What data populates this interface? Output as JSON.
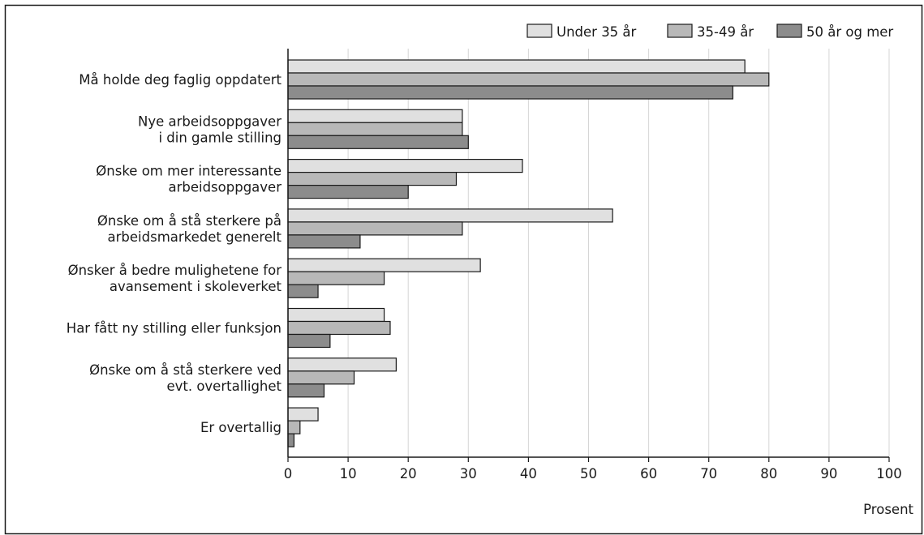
{
  "chart_data": {
    "type": "bar",
    "orientation": "horizontal",
    "categories": [
      [
        "Må holde deg faglig oppdatert"
      ],
      [
        "Nye arbeidsoppgaver",
        "i din gamle stilling"
      ],
      [
        "Ønske om mer interessante",
        "arbeidsoppgaver"
      ],
      [
        "Ønske om å stå sterkere på",
        "arbeidsmarkedet generelt"
      ],
      [
        "Ønsker å bedre mulighetene for",
        "avansement i skoleverket"
      ],
      [
        "Har fått ny stilling eller funksjon"
      ],
      [
        "Ønske om å stå sterkere ved",
        "evt. overtallighet"
      ],
      [
        "Er overtallig"
      ]
    ],
    "series": [
      {
        "name": "Under 35 år",
        "color": "#e0e0e0",
        "values": [
          76,
          29,
          39,
          54,
          32,
          16,
          18,
          5
        ]
      },
      {
        "name": "35-49 år",
        "color": "#b8b8b8",
        "values": [
          80,
          29,
          28,
          29,
          16,
          17,
          11,
          2
        ]
      },
      {
        "name": "50 år og mer",
        "color": "#8c8c8c",
        "values": [
          74,
          30,
          20,
          12,
          5,
          7,
          6,
          1
        ]
      }
    ],
    "xlim": [
      0,
      100
    ],
    "xticks": [
      0,
      10,
      20,
      30,
      40,
      50,
      60,
      70,
      80,
      90,
      100
    ],
    "xlabel": "Prosent",
    "grid": "vertical",
    "legend_position": "top-right"
  }
}
